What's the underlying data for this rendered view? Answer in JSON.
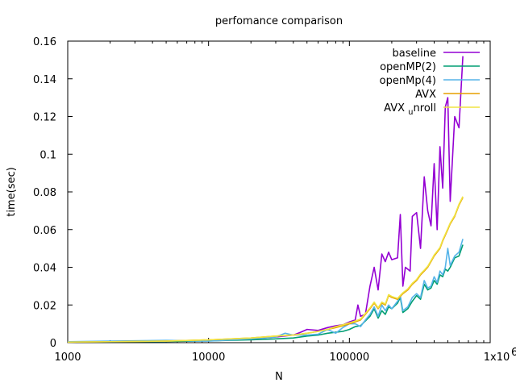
{
  "chart_data": {
    "type": "line",
    "title": "perfomance comparison",
    "xlabel": "N",
    "ylabel": "time(sec)",
    "xscale": "log",
    "xlim": [
      1000,
      1000000
    ],
    "ylim": [
      0,
      0.16
    ],
    "x_ticks": [
      1000,
      10000,
      100000,
      1000000
    ],
    "x_tick_labels": [
      "1000",
      "10000",
      "100000",
      "1x10"
    ],
    "x_tick_superscript": "6",
    "y_ticks": [
      0,
      0.02,
      0.04,
      0.06,
      0.08,
      0.1,
      0.12,
      0.14,
      0.16
    ],
    "y_tick_labels": [
      "0",
      "0.02",
      "0.04",
      "0.06",
      "0.08",
      "0.1",
      "0.12",
      "0.14",
      "0.16"
    ],
    "grid": false,
    "legend_position": "top-right",
    "legend_label_parts": [
      "AVX",
      "u",
      "nroll"
    ],
    "series": [
      {
        "name": "baseline",
        "color": "#9400d3",
        "points": [
          [
            1000,
            0.0004
          ],
          [
            2000,
            0.0005
          ],
          [
            5000,
            0.0007
          ],
          [
            10000,
            0.0012
          ],
          [
            20000,
            0.002
          ],
          [
            30000,
            0.003
          ],
          [
            40000,
            0.004
          ],
          [
            45000,
            0.0055
          ],
          [
            50000,
            0.007
          ],
          [
            60000,
            0.0065
          ],
          [
            70000,
            0.008
          ],
          [
            80000,
            0.009
          ],
          [
            90000,
            0.0095
          ],
          [
            100000,
            0.011
          ],
          [
            110000,
            0.012
          ],
          [
            115000,
            0.02
          ],
          [
            120000,
            0.014
          ],
          [
            130000,
            0.015
          ],
          [
            140000,
            0.03
          ],
          [
            150000,
            0.04
          ],
          [
            160000,
            0.028
          ],
          [
            170000,
            0.047
          ],
          [
            180000,
            0.043
          ],
          [
            190000,
            0.048
          ],
          [
            200000,
            0.044
          ],
          [
            220000,
            0.045
          ],
          [
            230000,
            0.068
          ],
          [
            240000,
            0.03
          ],
          [
            250000,
            0.04
          ],
          [
            270000,
            0.038
          ],
          [
            280000,
            0.067
          ],
          [
            300000,
            0.069
          ],
          [
            320000,
            0.05
          ],
          [
            340000,
            0.088
          ],
          [
            360000,
            0.07
          ],
          [
            380000,
            0.062
          ],
          [
            400000,
            0.095
          ],
          [
            420000,
            0.06
          ],
          [
            440000,
            0.104
          ],
          [
            460000,
            0.082
          ],
          [
            480000,
            0.125
          ],
          [
            500000,
            0.13
          ],
          [
            520000,
            0.075
          ],
          [
            560000,
            0.12
          ],
          [
            600000,
            0.114
          ],
          [
            640000,
            0.152
          ]
        ]
      },
      {
        "name": "openMP(2)",
        "color": "#009e73",
        "points": [
          [
            1000,
            0.0004
          ],
          [
            5000,
            0.0006
          ],
          [
            10000,
            0.001
          ],
          [
            20000,
            0.0015
          ],
          [
            30000,
            0.002
          ],
          [
            40000,
            0.0025
          ],
          [
            50000,
            0.0035
          ],
          [
            60000,
            0.004
          ],
          [
            70000,
            0.005
          ],
          [
            80000,
            0.0055
          ],
          [
            90000,
            0.006
          ],
          [
            100000,
            0.007
          ],
          [
            110000,
            0.0085
          ],
          [
            120000,
            0.009
          ],
          [
            140000,
            0.014
          ],
          [
            150000,
            0.018
          ],
          [
            160000,
            0.013
          ],
          [
            170000,
            0.017
          ],
          [
            180000,
            0.015
          ],
          [
            190000,
            0.019
          ],
          [
            200000,
            0.018
          ],
          [
            220000,
            0.021
          ],
          [
            230000,
            0.024
          ],
          [
            240000,
            0.016
          ],
          [
            260000,
            0.018
          ],
          [
            280000,
            0.022
          ],
          [
            300000,
            0.025
          ],
          [
            320000,
            0.023
          ],
          [
            340000,
            0.031
          ],
          [
            360000,
            0.028
          ],
          [
            380000,
            0.029
          ],
          [
            400000,
            0.033
          ],
          [
            420000,
            0.031
          ],
          [
            440000,
            0.036
          ],
          [
            460000,
            0.035
          ],
          [
            480000,
            0.039
          ],
          [
            500000,
            0.038
          ],
          [
            520000,
            0.04
          ],
          [
            560000,
            0.045
          ],
          [
            600000,
            0.046
          ],
          [
            640000,
            0.052
          ]
        ]
      },
      {
        "name": "openMp(4)",
        "color": "#56b4e9",
        "points": [
          [
            1000,
            0.0005
          ],
          [
            5000,
            0.0012
          ],
          [
            10000,
            0.0008
          ],
          [
            20000,
            0.002
          ],
          [
            30000,
            0.003
          ],
          [
            35000,
            0.005
          ],
          [
            40000,
            0.004
          ],
          [
            50000,
            0.004
          ],
          [
            60000,
            0.0045
          ],
          [
            70000,
            0.007
          ],
          [
            80000,
            0.005
          ],
          [
            90000,
            0.008
          ],
          [
            100000,
            0.01
          ],
          [
            110000,
            0.01
          ],
          [
            120000,
            0.0085
          ],
          [
            130000,
            0.012
          ],
          [
            140000,
            0.015
          ],
          [
            150000,
            0.019
          ],
          [
            160000,
            0.014
          ],
          [
            170000,
            0.02
          ],
          [
            180000,
            0.017
          ],
          [
            190000,
            0.02
          ],
          [
            200000,
            0.018
          ],
          [
            220000,
            0.022
          ],
          [
            230000,
            0.025
          ],
          [
            240000,
            0.017
          ],
          [
            260000,
            0.019
          ],
          [
            280000,
            0.024
          ],
          [
            300000,
            0.026
          ],
          [
            320000,
            0.024
          ],
          [
            340000,
            0.033
          ],
          [
            360000,
            0.029
          ],
          [
            380000,
            0.03
          ],
          [
            400000,
            0.035
          ],
          [
            420000,
            0.032
          ],
          [
            440000,
            0.038
          ],
          [
            460000,
            0.036
          ],
          [
            480000,
            0.04
          ],
          [
            500000,
            0.05
          ],
          [
            520000,
            0.041
          ],
          [
            560000,
            0.046
          ],
          [
            600000,
            0.048
          ],
          [
            640000,
            0.055
          ]
        ]
      },
      {
        "name": "AVX",
        "color": "#e69f00",
        "points": [
          [
            1000,
            0.0003
          ],
          [
            5000,
            0.0008
          ],
          [
            10000,
            0.0015
          ],
          [
            20000,
            0.0025
          ],
          [
            30000,
            0.0035
          ],
          [
            40000,
            0.004
          ],
          [
            50000,
            0.005
          ],
          [
            60000,
            0.006
          ],
          [
            70000,
            0.007
          ],
          [
            80000,
            0.008
          ],
          [
            90000,
            0.009
          ],
          [
            100000,
            0.01
          ],
          [
            110000,
            0.011
          ],
          [
            120000,
            0.012
          ],
          [
            130000,
            0.015
          ],
          [
            140000,
            0.018
          ],
          [
            150000,
            0.021
          ],
          [
            160000,
            0.018
          ],
          [
            170000,
            0.021
          ],
          [
            180000,
            0.02
          ],
          [
            190000,
            0.025
          ],
          [
            200000,
            0.024
          ],
          [
            220000,
            0.023
          ],
          [
            240000,
            0.026
          ],
          [
            260000,
            0.028
          ],
          [
            280000,
            0.031
          ],
          [
            300000,
            0.033
          ],
          [
            320000,
            0.036
          ],
          [
            340000,
            0.038
          ],
          [
            360000,
            0.04
          ],
          [
            380000,
            0.043
          ],
          [
            400000,
            0.046
          ],
          [
            420000,
            0.048
          ],
          [
            440000,
            0.05
          ],
          [
            460000,
            0.054
          ],
          [
            480000,
            0.057
          ],
          [
            500000,
            0.06
          ],
          [
            520000,
            0.063
          ],
          [
            560000,
            0.067
          ],
          [
            600000,
            0.073
          ],
          [
            640000,
            0.077
          ]
        ]
      },
      {
        "name": "AVX unroll",
        "color": "#f0e442",
        "points": [
          [
            1000,
            0.0003
          ],
          [
            5000,
            0.0008
          ],
          [
            10000,
            0.0015
          ],
          [
            20000,
            0.0025
          ],
          [
            30000,
            0.0035
          ],
          [
            40000,
            0.004
          ],
          [
            50000,
            0.005
          ],
          [
            60000,
            0.006
          ],
          [
            70000,
            0.007
          ],
          [
            80000,
            0.0085
          ],
          [
            90000,
            0.0095
          ],
          [
            100000,
            0.0105
          ],
          [
            110000,
            0.0115
          ],
          [
            120000,
            0.0125
          ],
          [
            130000,
            0.0155
          ],
          [
            140000,
            0.0185
          ],
          [
            150000,
            0.0215
          ],
          [
            160000,
            0.0185
          ],
          [
            170000,
            0.0215
          ],
          [
            180000,
            0.0205
          ],
          [
            190000,
            0.0255
          ],
          [
            200000,
            0.0245
          ],
          [
            220000,
            0.0235
          ],
          [
            240000,
            0.0265
          ],
          [
            260000,
            0.0285
          ],
          [
            280000,
            0.0315
          ],
          [
            300000,
            0.0335
          ],
          [
            320000,
            0.0365
          ],
          [
            340000,
            0.0385
          ],
          [
            360000,
            0.0405
          ],
          [
            380000,
            0.0435
          ],
          [
            400000,
            0.0465
          ],
          [
            420000,
            0.0485
          ],
          [
            440000,
            0.0505
          ],
          [
            460000,
            0.0545
          ],
          [
            480000,
            0.0575
          ],
          [
            500000,
            0.0605
          ],
          [
            520000,
            0.0635
          ],
          [
            560000,
            0.0675
          ],
          [
            600000,
            0.0735
          ],
          [
            640000,
            0.0775
          ]
        ]
      }
    ]
  }
}
